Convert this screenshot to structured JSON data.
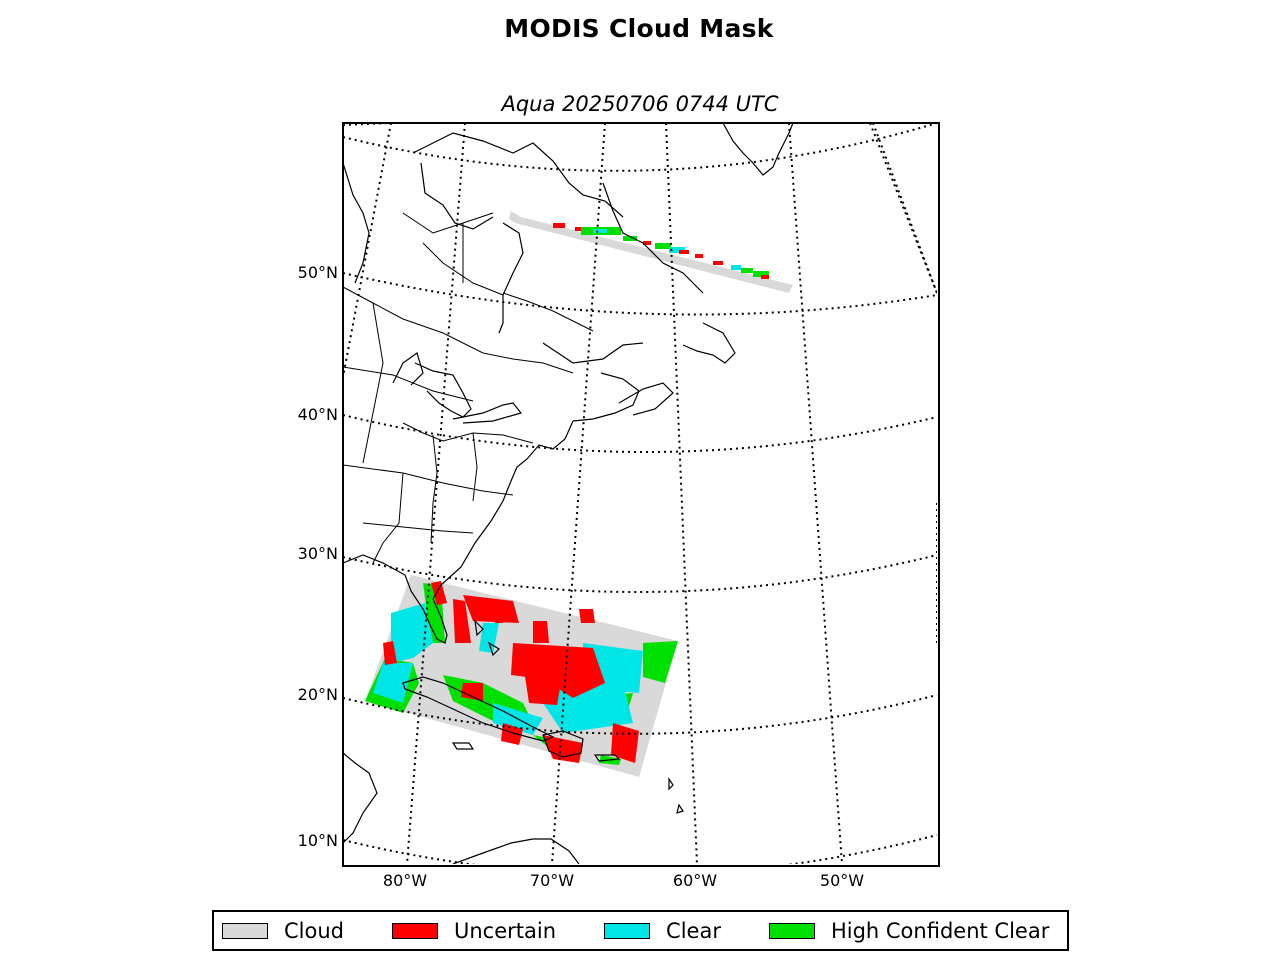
{
  "title": "MODIS Cloud Mask",
  "subtitle": "Aqua 20250706 0744 UTC",
  "lat_labels": [
    "50°N",
    "40°N",
    "30°N",
    "20°N",
    "10°N"
  ],
  "lon_labels": [
    "80°W",
    "70°W",
    "60°W",
    "50°W"
  ],
  "legend": [
    {
      "label": "Cloud",
      "color": "#d9d9d9"
    },
    {
      "label": "Uncertain",
      "color": "#ff0000"
    },
    {
      "label": "Clear",
      "color": "#00e5e5"
    },
    {
      "label": "High Confident Clear",
      "color": "#00e000"
    }
  ],
  "colors": {
    "cloud": "#d9d9d9",
    "uncertain": "#ff0000",
    "clear": "#00e5e5",
    "high_confident_clear": "#00e000"
  }
}
